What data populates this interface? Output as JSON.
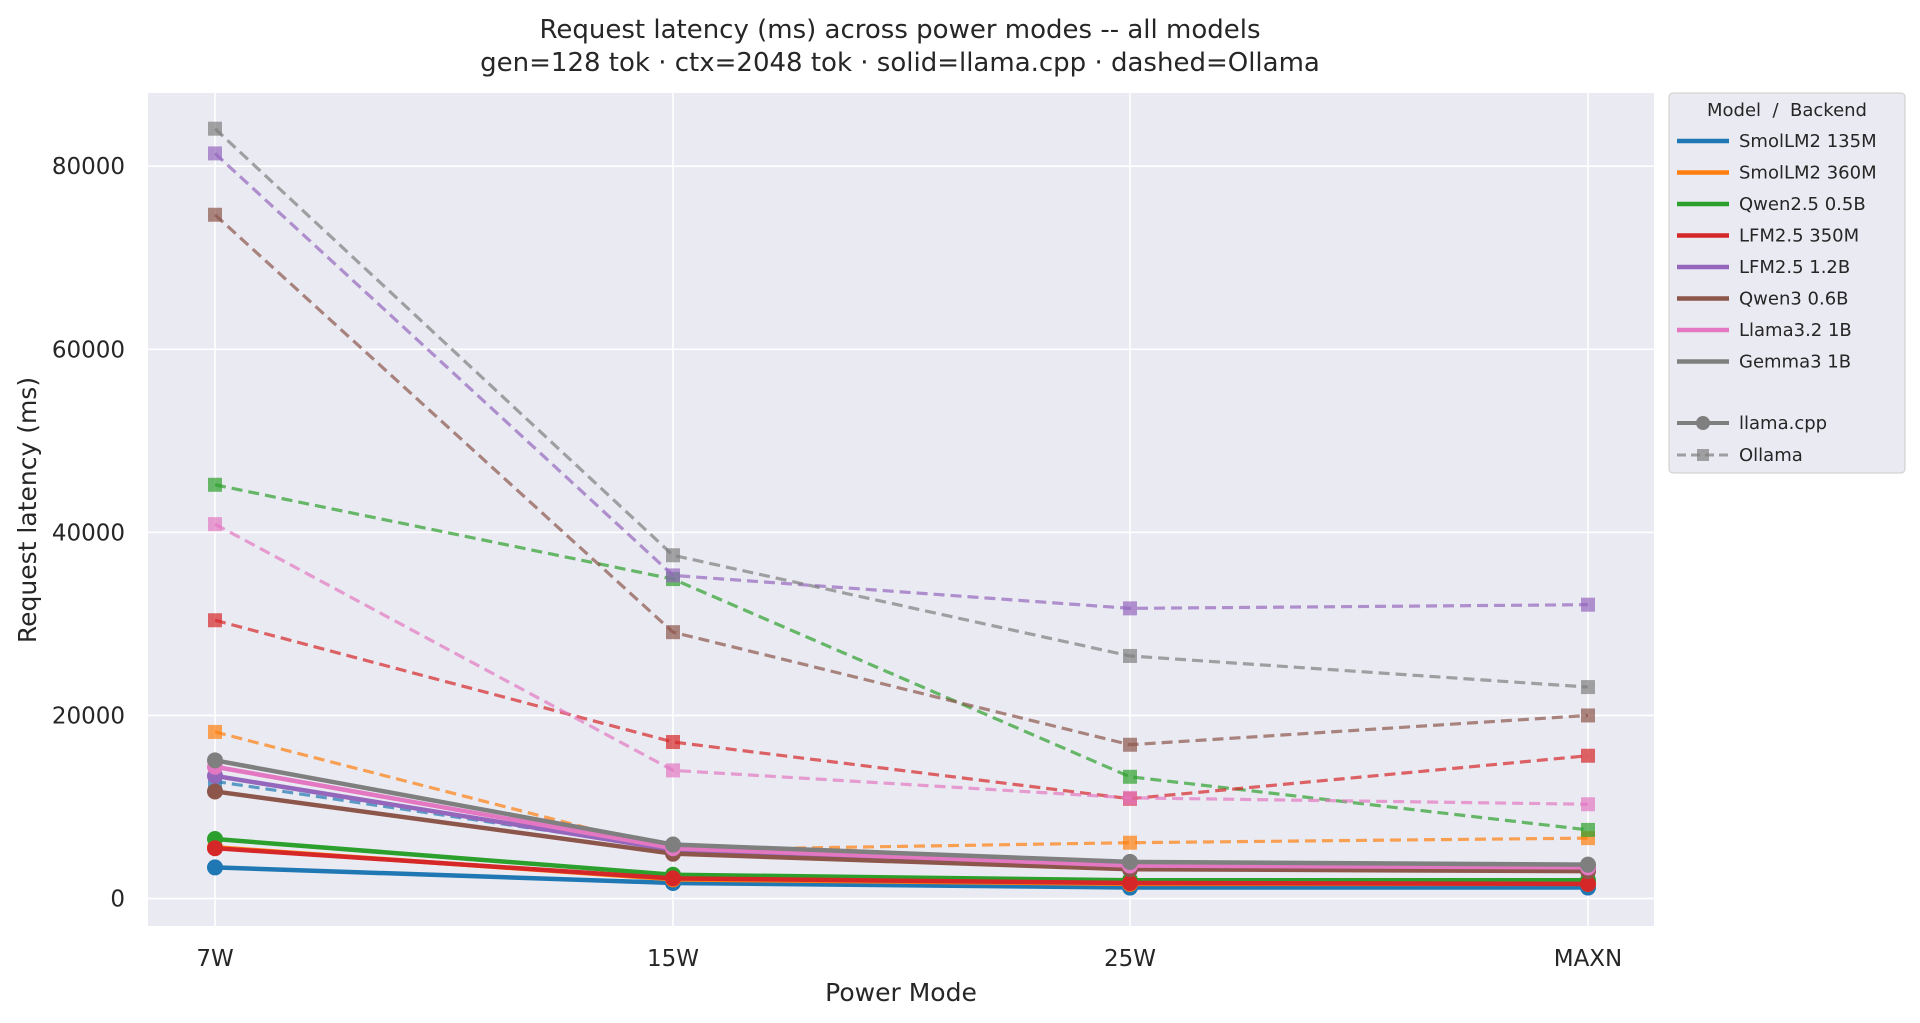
{
  "chart_data": {
    "type": "line",
    "title": "Request latency (ms) across power modes -- all models",
    "subtitle": "gen=128 tok · ctx=2048 tok · solid=llama.cpp · dashed=Ollama",
    "xlabel": "Power Mode",
    "ylabel": "Request latency (ms)",
    "categories": [
      "7W",
      "15W",
      "25W",
      "MAXN"
    ],
    "ylim": [
      -3000,
      88000
    ],
    "yticks": [
      0,
      20000,
      40000,
      60000,
      80000
    ],
    "ytick_labels": [
      "0",
      "20000",
      "40000",
      "60000",
      "80000"
    ],
    "grid": true,
    "legend_placement": "outside-right",
    "legend_title": "Model  /  Backend",
    "models": [
      {
        "name": "SmolLM2 135M",
        "color": "#1f77b4",
        "llama_cpp": [
          3400,
          1700,
          1200,
          1200
        ],
        "ollama": [
          12800,
          5400,
          3400,
          3100
        ]
      },
      {
        "name": "SmolLM2 360M",
        "color": "#ff7f0e",
        "llama_cpp": [
          5600,
          2100,
          1600,
          1600
        ],
        "ollama": [
          18200,
          5300,
          6100,
          6600
        ]
      },
      {
        "name": "Qwen2.5 0.5B",
        "color": "#2ca02c",
        "llama_cpp": [
          6500,
          2600,
          2000,
          2000
        ],
        "ollama": [
          45200,
          34900,
          13300,
          7500
        ]
      },
      {
        "name": "LFM2.5 350M",
        "color": "#d62728",
        "llama_cpp": [
          5500,
          2200,
          1700,
          1600
        ],
        "ollama": [
          30400,
          17100,
          10900,
          15600
        ]
      },
      {
        "name": "LFM2.5 1.2B",
        "color": "#9467bd",
        "llama_cpp": [
          13400,
          5300,
          3500,
          3300
        ],
        "ollama": [
          81400,
          35300,
          31700,
          32100
        ]
      },
      {
        "name": "Qwen3 0.6B",
        "color": "#8c564b",
        "llama_cpp": [
          11700,
          4900,
          3200,
          3000
        ],
        "ollama": [
          74700,
          29100,
          16800,
          20000
        ]
      },
      {
        "name": "Llama3.2 1B",
        "color": "#e377c2",
        "llama_cpp": [
          14400,
          5500,
          3600,
          3400
        ],
        "ollama": [
          40900,
          14000,
          11000,
          10300
        ]
      },
      {
        "name": "Gemma3 1B",
        "color": "#7f7f7f",
        "llama_cpp": [
          15100,
          5900,
          4000,
          3700
        ],
        "ollama": [
          84100,
          37500,
          26500,
          23100
        ]
      }
    ],
    "backends": [
      {
        "name": "llama.cpp",
        "style": "solid",
        "marker": "circle"
      },
      {
        "name": "Ollama",
        "style": "dashed",
        "marker": "square"
      }
    ]
  }
}
